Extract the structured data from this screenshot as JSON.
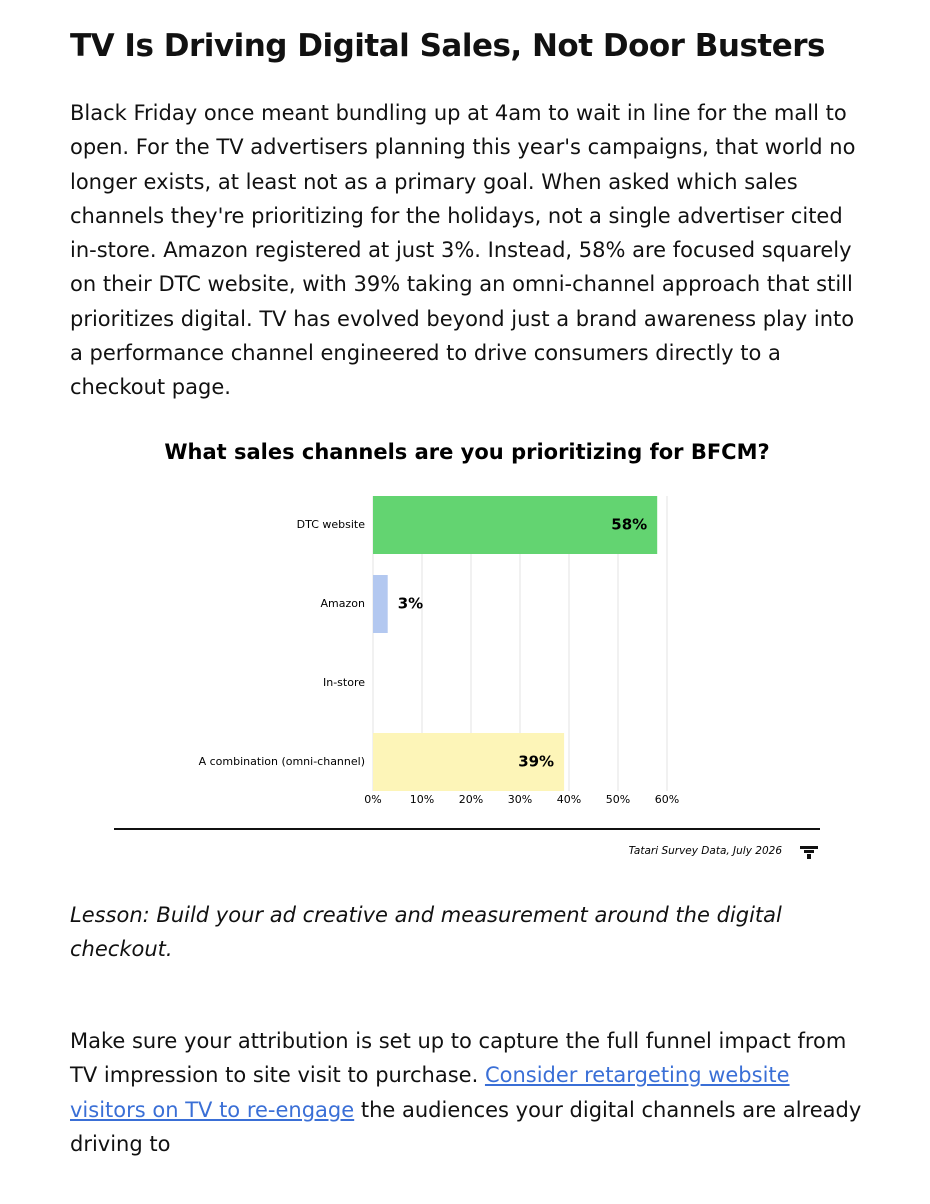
{
  "title": "TV Is Driving Digital Sales, Not Door Busters",
  "intro": "Black Friday once meant bundling up at 4am to wait in line for the mall to open. For the TV advertisers planning this year's campaigns, that world no longer exists, at least not as a primary goal. When asked which sales channels they're prioritizing for the holidays, not a single advertiser cited in-store. Amazon registered at just 3%. Instead, 58% are focused squarely on their DTC website, with 39% taking an omni-channel approach that still prioritizes digital. TV has evolved beyond just a brand awareness play into a performance channel engineered to drive consumers directly to a checkout page.",
  "chart_data": {
    "type": "bar",
    "orientation": "horizontal",
    "title": "What sales channels are you prioritizing for BFCM?",
    "categories": [
      "DTC website",
      "Amazon",
      "In-store",
      "A combination (omni-channel)"
    ],
    "values": [
      58,
      3,
      0,
      39
    ],
    "value_labels": [
      "58%",
      "3%",
      null,
      "39%"
    ],
    "colors": [
      "#63d471",
      "#b3c8f0",
      null,
      "#fdf5b8"
    ],
    "xlim": [
      0,
      60
    ],
    "xticks": [
      {
        "value": 0,
        "label": "0%"
      },
      {
        "value": 10,
        "label": "10%"
      },
      {
        "value": 20,
        "label": "20%"
      },
      {
        "value": 30,
        "label": "30%"
      },
      {
        "value": 40,
        "label": "40%"
      },
      {
        "value": 50,
        "label": "50%"
      },
      {
        "value": 60,
        "label": "60%"
      }
    ],
    "grid": true,
    "source": "Tatari Survey Data, July 2026"
  },
  "lesson": "Lesson: Build your ad creative and measurement around the digital checkout.",
  "closing": {
    "before": "Make sure your attribution is set up to capture the full funnel impact from TV impression to site visit to purchase. ",
    "link": "Consider retargeting website visitors on TV to re-engage",
    "after": " the audiences your digital channels are already driving to"
  }
}
